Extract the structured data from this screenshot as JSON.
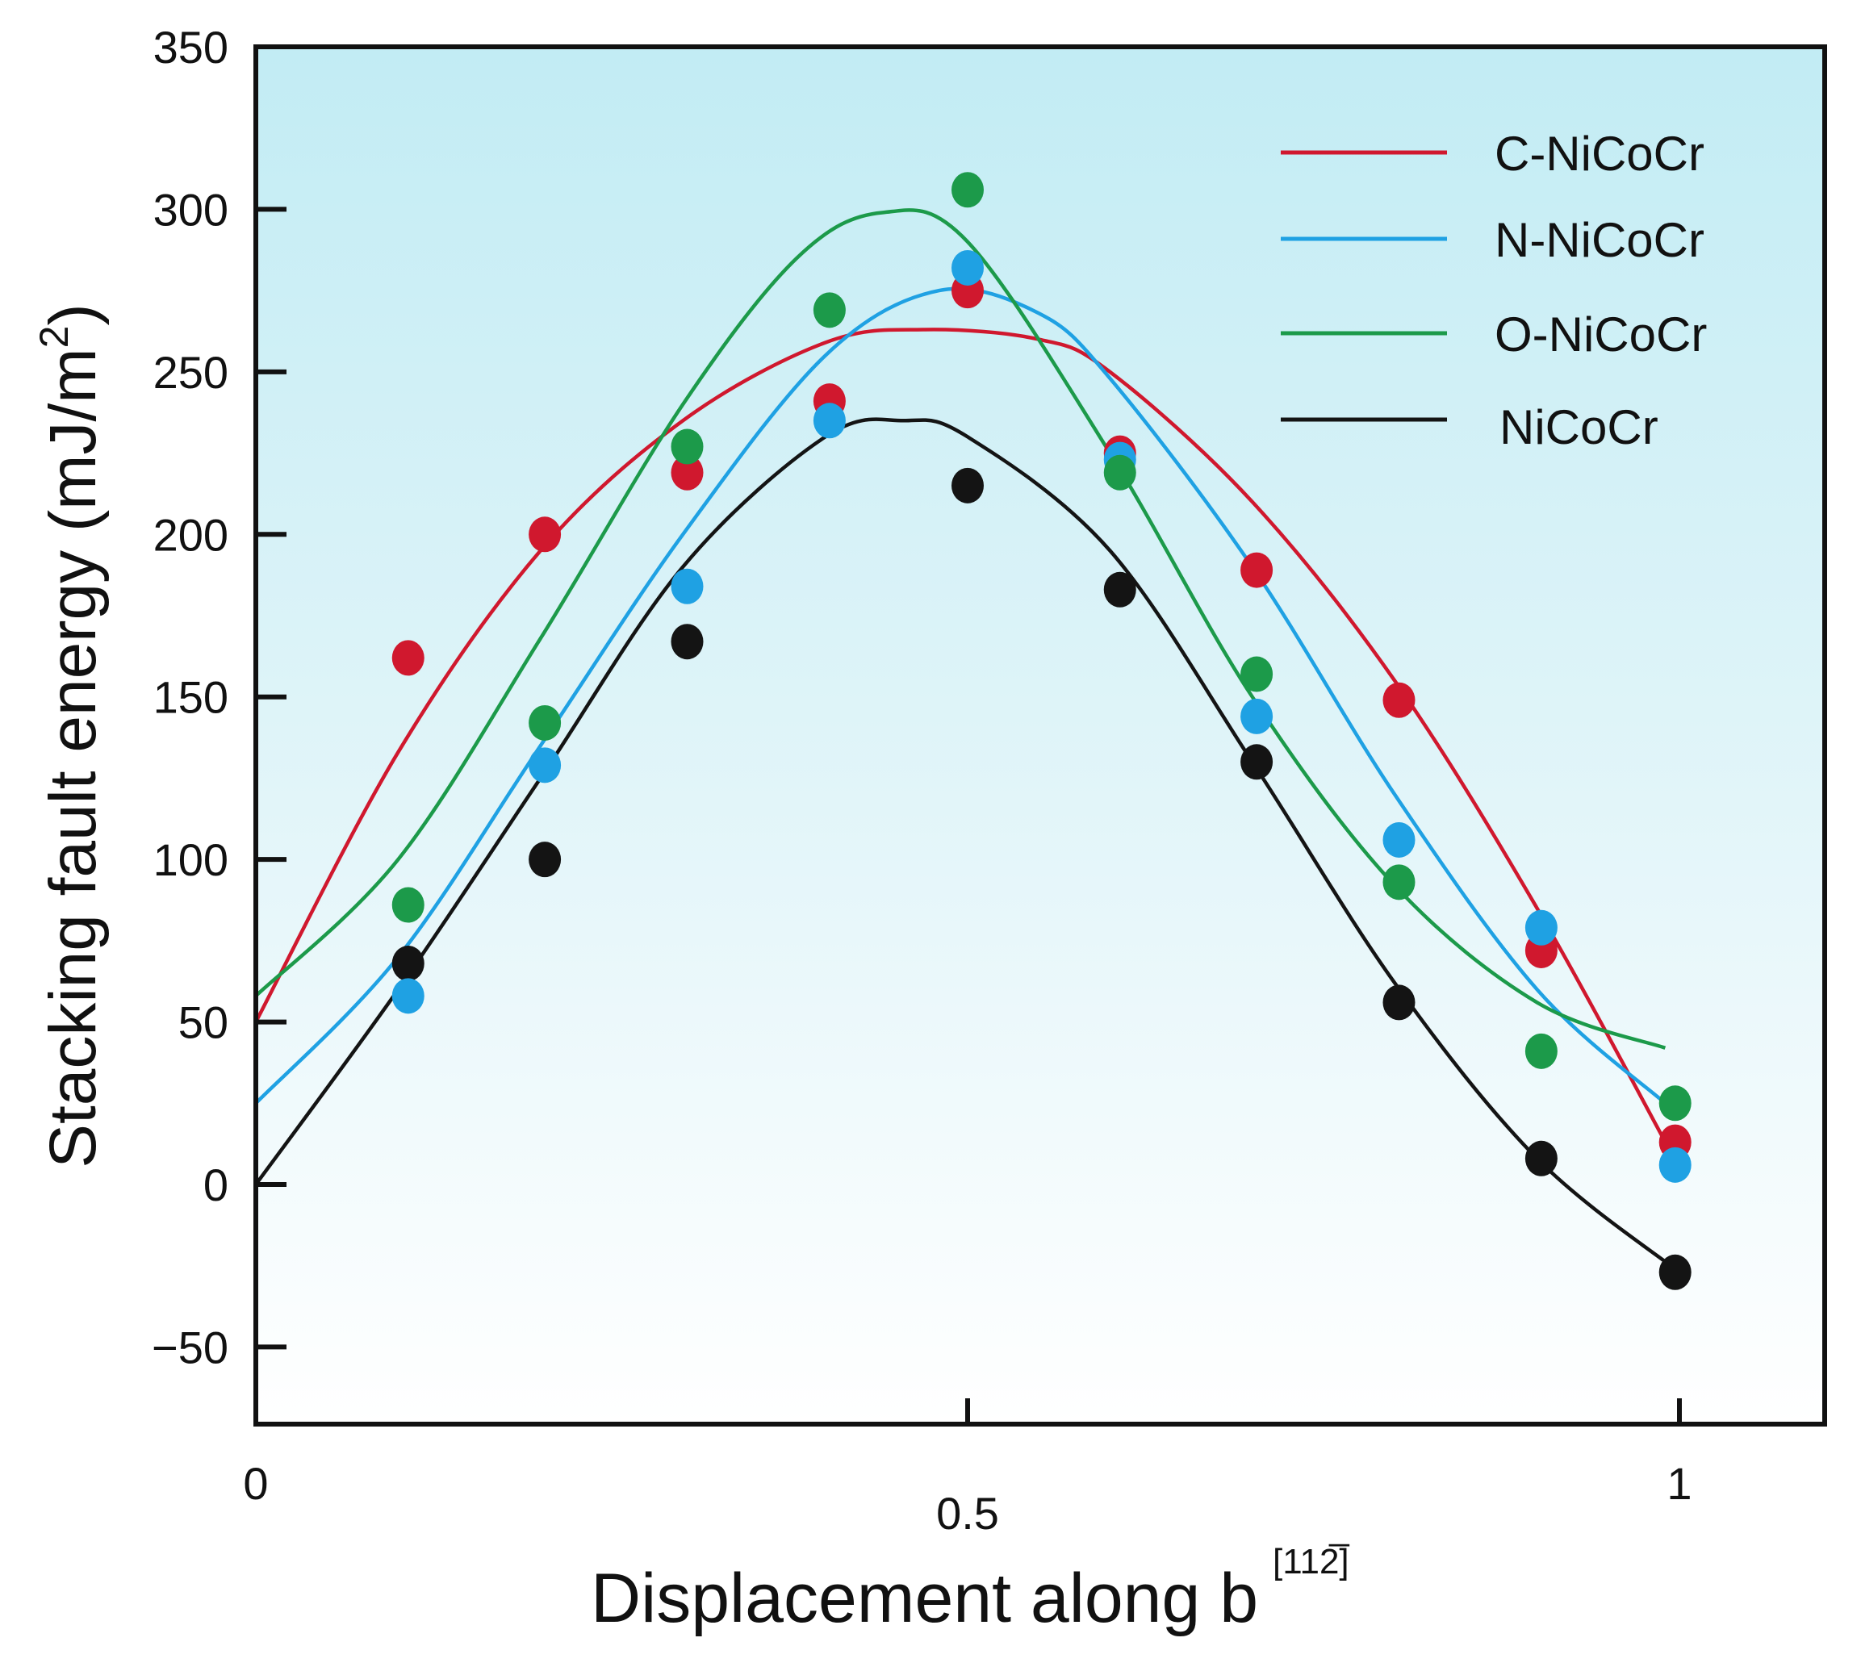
{
  "chart_data": {
    "type": "scatter",
    "title": "",
    "xlabel": "Displacement along b",
    "xlabel_superscript": "[112̅]",
    "ylabel": "Stacking fault energy (mJ/m",
    "ylabel_superscript": "2",
    "ylabel_close": ")",
    "xlim": [
      0,
      1.1
    ],
    "ylim": [
      -75,
      350
    ],
    "xticks": [
      {
        "value": 0,
        "label": "0"
      },
      {
        "value": 0.5,
        "label": "0.5"
      },
      {
        "value": 1,
        "label": "1"
      }
    ],
    "yticks": [
      {
        "value": 350,
        "label": "350"
      },
      {
        "value": 300,
        "label": "300"
      },
      {
        "value": 250,
        "label": "250"
      },
      {
        "value": 200,
        "label": "200"
      },
      {
        "value": 150,
        "label": "150"
      },
      {
        "value": 100,
        "label": "100"
      },
      {
        "value": 50,
        "label": "50"
      },
      {
        "value": 0,
        "label": "0"
      },
      {
        "value": -50,
        "label": "−50"
      }
    ],
    "legend_position": "top-right",
    "series": [
      {
        "name": "C-NiCoCr",
        "color": "#d0182e",
        "points": [
          [
            0.107,
            162
          ],
          [
            0.203,
            200
          ],
          [
            0.303,
            219
          ],
          [
            0.403,
            241
          ],
          [
            0.5,
            275
          ],
          [
            0.607,
            225
          ],
          [
            0.703,
            189
          ],
          [
            0.803,
            149
          ],
          [
            0.903,
            72
          ],
          [
            0.997,
            13
          ]
        ],
        "fit": [
          [
            0,
            50
          ],
          [
            0.1,
            133
          ],
          [
            0.2,
            195
          ],
          [
            0.3,
            235
          ],
          [
            0.4,
            259
          ],
          [
            0.47,
            263
          ],
          [
            0.55,
            260
          ],
          [
            0.6,
            250
          ],
          [
            0.7,
            210
          ],
          [
            0.8,
            155
          ],
          [
            0.9,
            85
          ],
          [
            1.0,
            5
          ]
        ]
      },
      {
        "name": "N-NiCoCr",
        "color": "#1fa1e3",
        "points": [
          [
            0.107,
            58
          ],
          [
            0.203,
            129
          ],
          [
            0.303,
            184
          ],
          [
            0.403,
            235
          ],
          [
            0.5,
            282
          ],
          [
            0.607,
            223
          ],
          [
            0.703,
            144
          ],
          [
            0.803,
            106
          ],
          [
            0.903,
            79
          ],
          [
            0.997,
            6
          ]
        ],
        "fit": [
          [
            0,
            25
          ],
          [
            0.1,
            70
          ],
          [
            0.2,
            135
          ],
          [
            0.3,
            200
          ],
          [
            0.4,
            255
          ],
          [
            0.48,
            275
          ],
          [
            0.55,
            268
          ],
          [
            0.6,
            248
          ],
          [
            0.7,
            190
          ],
          [
            0.8,
            120
          ],
          [
            0.9,
            60
          ],
          [
            0.99,
            25
          ]
        ]
      },
      {
        "name": "O-NiCoCr",
        "color": "#1c9a4a",
        "points": [
          [
            0.107,
            86
          ],
          [
            0.203,
            142
          ],
          [
            0.303,
            227
          ],
          [
            0.403,
            269
          ],
          [
            0.5,
            306
          ],
          [
            0.607,
            219
          ],
          [
            0.703,
            157
          ],
          [
            0.803,
            93
          ],
          [
            0.903,
            41
          ],
          [
            0.997,
            25
          ]
        ],
        "fit": [
          [
            0,
            58
          ],
          [
            0.1,
            100
          ],
          [
            0.2,
            168
          ],
          [
            0.3,
            240
          ],
          [
            0.38,
            285
          ],
          [
            0.44,
            299
          ],
          [
            0.5,
            290
          ],
          [
            0.6,
            225
          ],
          [
            0.7,
            150
          ],
          [
            0.8,
            92
          ],
          [
            0.9,
            56
          ],
          [
            0.99,
            42
          ]
        ]
      },
      {
        "name": "NiCoCr",
        "color": "#141414",
        "points": [
          [
            0.107,
            68
          ],
          [
            0.203,
            100
          ],
          [
            0.303,
            167
          ],
          [
            0.5,
            215
          ],
          [
            0.607,
            183
          ],
          [
            0.703,
            130
          ],
          [
            0.803,
            56
          ],
          [
            0.903,
            8
          ],
          [
            0.997,
            -27
          ]
        ],
        "fit": [
          [
            0,
            0
          ],
          [
            0.1,
            60
          ],
          [
            0.2,
            125
          ],
          [
            0.3,
            190
          ],
          [
            0.4,
            230
          ],
          [
            0.455,
            235
          ],
          [
            0.5,
            230
          ],
          [
            0.6,
            195
          ],
          [
            0.7,
            130
          ],
          [
            0.8,
            62
          ],
          [
            0.9,
            8
          ],
          [
            1.0,
            -27
          ]
        ]
      }
    ]
  }
}
